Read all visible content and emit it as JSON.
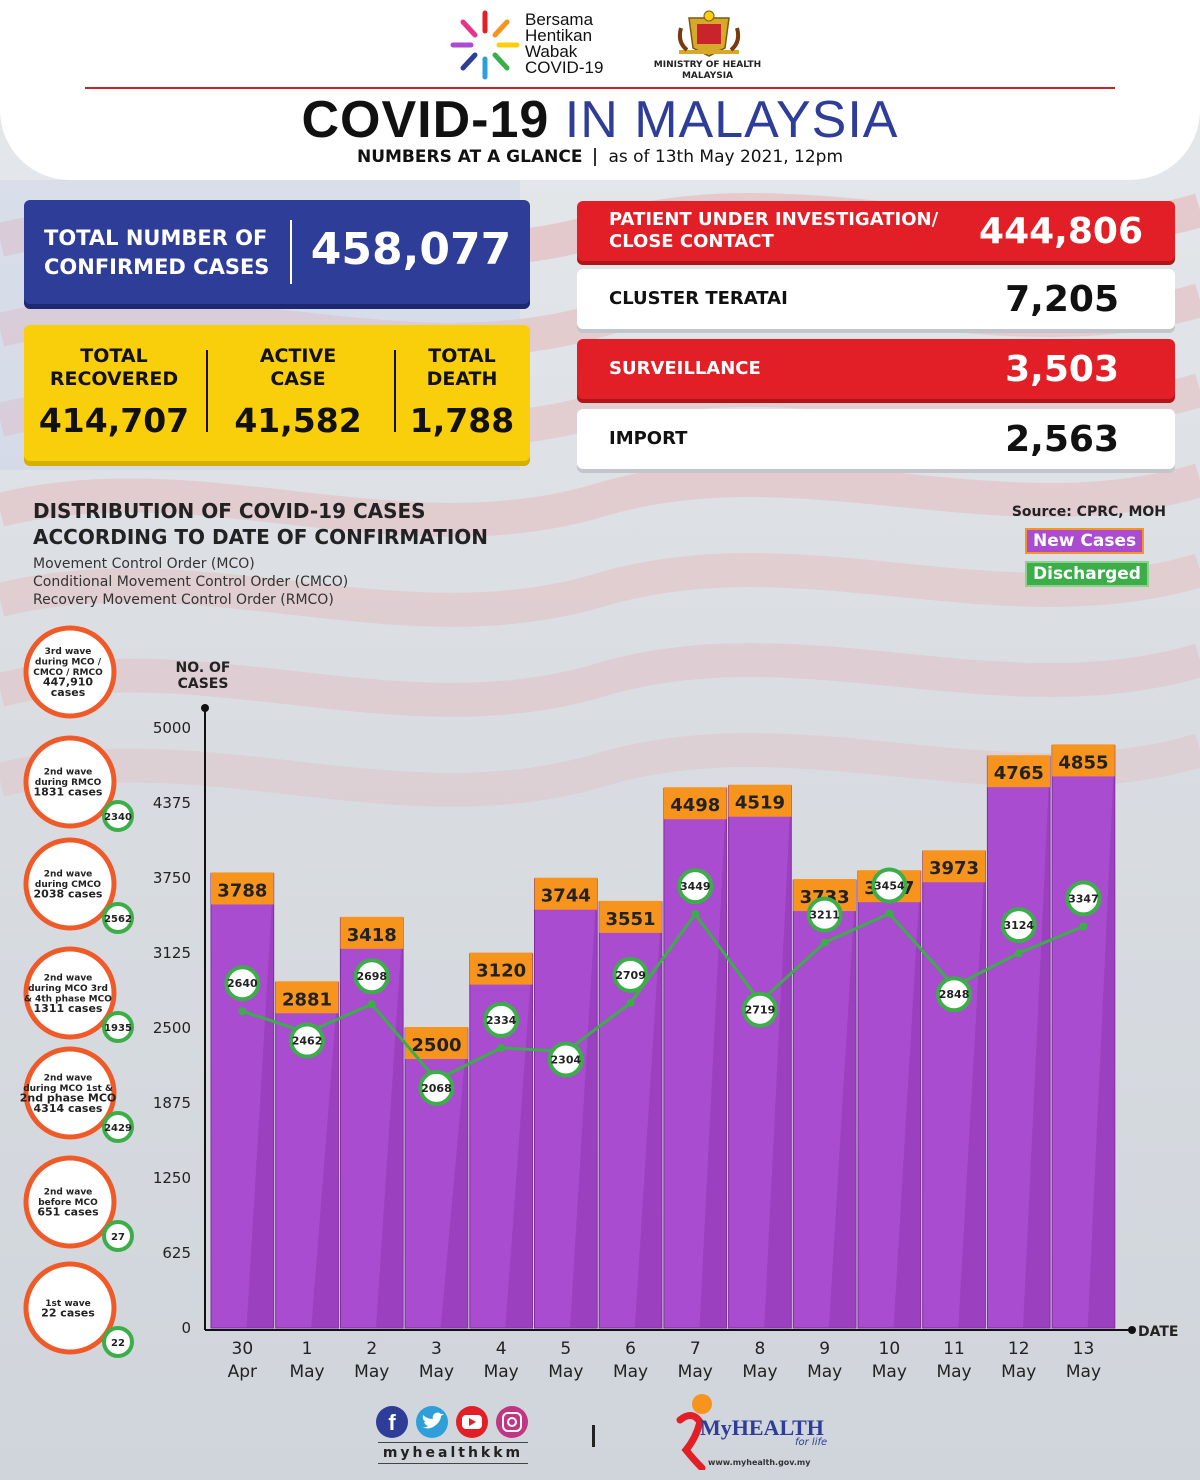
{
  "header": {
    "logo_text_lines": [
      "Bersama",
      "Hentikan",
      "Wabak",
      "COVID-19"
    ],
    "ministry_lines": [
      "MINISTRY OF HEALTH",
      "MALAYSIA"
    ],
    "title_part1": "COVID-19",
    "title_part2": "IN MALAYSIA",
    "subtitle_part1": "NUMBERS AT A GLANCE",
    "subtitle_part2": "as of 13th May 2021, 12pm"
  },
  "totals": {
    "confirmed_label_lines": [
      "TOTAL NUMBER OF",
      "CONFIRMED CASES"
    ],
    "confirmed_value": "458,077",
    "stats": [
      {
        "label_lines": [
          "TOTAL",
          "RECOVERED"
        ],
        "value": "414,707"
      },
      {
        "label_lines": [
          "ACTIVE",
          "CASE"
        ],
        "value": "41,582"
      },
      {
        "label_lines": [
          "TOTAL",
          "DEATH"
        ],
        "value": "1,788"
      }
    ]
  },
  "categories_panel": [
    {
      "label_lines": [
        "PATIENT UNDER INVESTIGATION/",
        "CLOSE CONTACT"
      ],
      "value": "444,806",
      "style": "red"
    },
    {
      "label_lines": [
        "CLUSTER TERATAI"
      ],
      "value": "7,205",
      "style": "white"
    },
    {
      "label_lines": [
        "SURVEILLANCE"
      ],
      "value": "3,503",
      "style": "red"
    },
    {
      "label_lines": [
        "IMPORT"
      ],
      "value": "2,563",
      "style": "white"
    }
  ],
  "chart_text": {
    "title_lines": [
      "DISTRIBUTION OF COVID-19 CASES",
      "ACCORDING TO DATE OF CONFIRMATION"
    ],
    "subtitle_lines": [
      "Movement Control Order (MCO)",
      "Conditional Movement Control Order (CMCO)",
      "Recovery Movement Control Order (RMCO)"
    ],
    "source": "Source: CPRC, MOH"
  },
  "waves": [
    {
      "lines": [
        "3rd wave",
        "during MCO /",
        "CMCO / RMCO",
        "447,910",
        "cases"
      ],
      "discharged": ""
    },
    {
      "lines": [
        "2nd wave",
        "during RMCO",
        "1831 cases"
      ],
      "discharged": "2340"
    },
    {
      "lines": [
        "2nd wave",
        "during CMCO",
        "2038 cases"
      ],
      "discharged": "2562"
    },
    {
      "lines": [
        "2nd wave",
        "during MCO 3rd",
        "& 4th phase MCO",
        "1311 cases"
      ],
      "discharged": "1935"
    },
    {
      "lines": [
        "2nd wave",
        "during MCO 1st &",
        "2nd phase MCO",
        "4314 cases"
      ],
      "discharged": "2429"
    },
    {
      "lines": [
        "2nd wave",
        "before MCO",
        "651 cases"
      ],
      "discharged": "27"
    },
    {
      "lines": [
        "1st wave",
        "22 cases"
      ],
      "discharged": "22"
    }
  ],
  "chart_data": {
    "type": "bar",
    "ylabel": "NO. OF CASES",
    "xlabel": "DATE",
    "ylim": [
      0,
      5000
    ],
    "yticks": [
      0,
      625,
      1250,
      1875,
      2500,
      3125,
      3750,
      4375,
      5000
    ],
    "categories": [
      [
        "30",
        "Apr"
      ],
      [
        "1",
        "May"
      ],
      [
        "2",
        "May"
      ],
      [
        "3",
        "May"
      ],
      [
        "4",
        "May"
      ],
      [
        "5",
        "May"
      ],
      [
        "6",
        "May"
      ],
      [
        "7",
        "May"
      ],
      [
        "8",
        "May"
      ],
      [
        "9",
        "May"
      ],
      [
        "10",
        "May"
      ],
      [
        "11",
        "May"
      ],
      [
        "12",
        "May"
      ],
      [
        "13",
        "May"
      ]
    ],
    "series": [
      {
        "name": "New Cases",
        "type": "bar",
        "color": "#a94ccf",
        "label_color": "#f7941d",
        "values": [
          3788,
          2881,
          3418,
          2500,
          3120,
          3744,
          3551,
          4498,
          4519,
          3733,
          3807,
          3973,
          4765,
          4855
        ]
      },
      {
        "name": "Discharged",
        "type": "line",
        "color": "#3cae49",
        "values": [
          2640,
          2462,
          2698,
          2068,
          2334,
          2304,
          2709,
          3449,
          2719,
          3211,
          3454,
          2848,
          3124,
          3347
        ]
      }
    ],
    "legend": "top-right"
  },
  "footer": {
    "handle": "myhealthkkm",
    "brand": "MyHEALTH",
    "tagline": "for life",
    "url": "www.myhealth.gov.my",
    "social_icons": [
      "facebook-icon",
      "twitter-icon",
      "youtube-icon",
      "instagram-icon"
    ]
  },
  "colors": {
    "navy": "#2e3d97",
    "red": "#e21f26",
    "yellow": "#f9cf0c",
    "purple": "#a94ccf",
    "orange": "#f7941d",
    "green": "#3cae49"
  }
}
